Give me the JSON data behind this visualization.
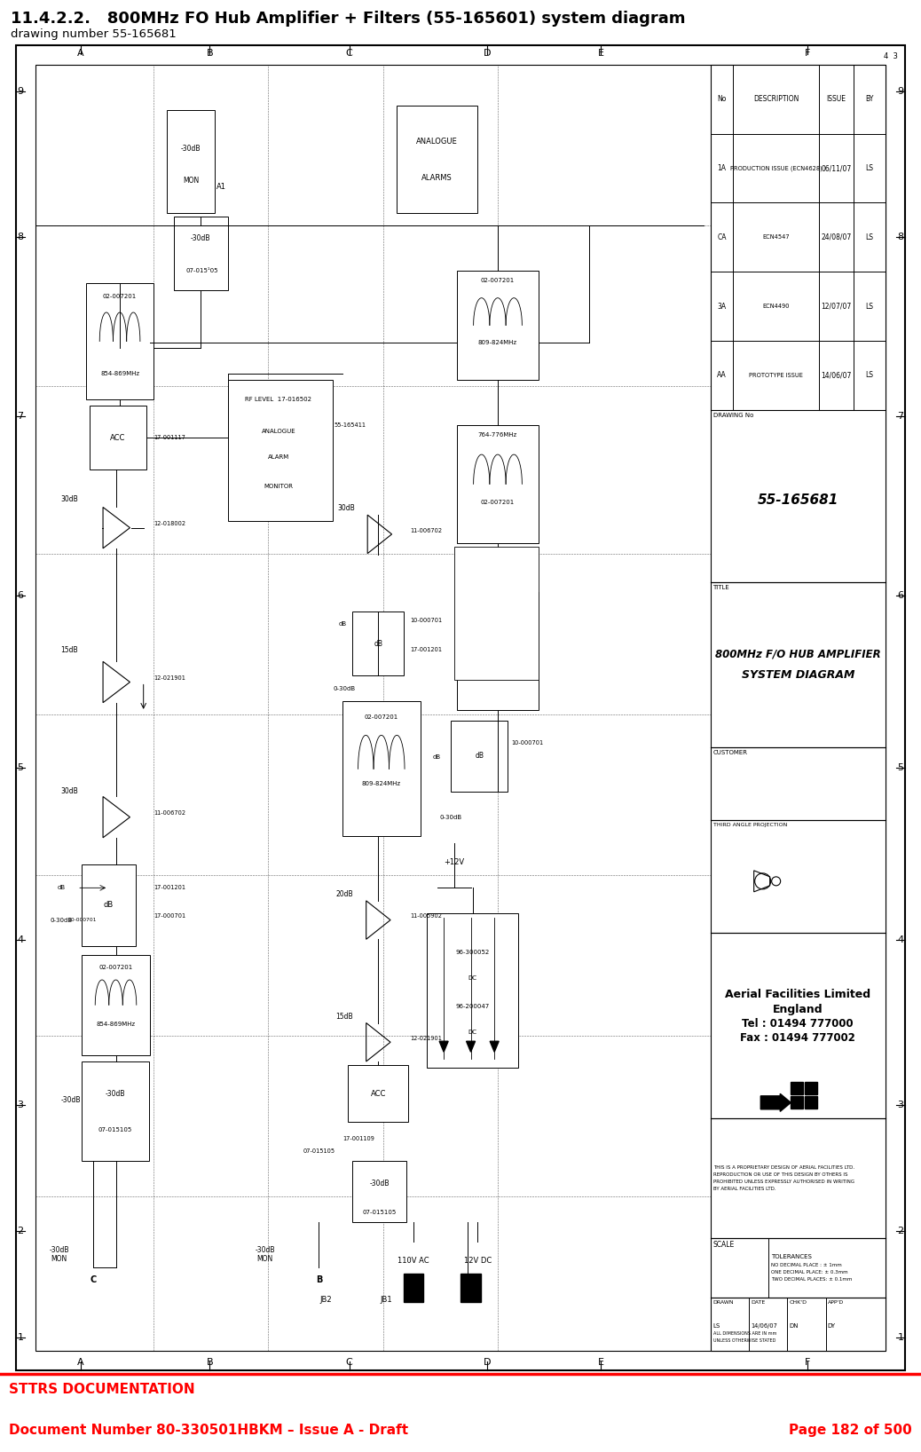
{
  "title_line1": "11.4.2.2.   800MHz FO Hub Amplifier + Filters (55-165601) system diagram",
  "title_line2": "drawing number 55-165681",
  "footer_red_line": "STTRS DOCUMENTATION",
  "footer_doc": "Document Number 80-330501HBKM – Issue A - Draft",
  "footer_page": "Page 182 of 500",
  "bg_color": "#ffffff",
  "title_color": "#000000",
  "footer_text_color": "#ff0000",
  "diagram_title": "800MHz F/O HUB AMPLIFIER",
  "diagram_subtitle": "SYSTEM DIAGRAM",
  "company_name": "Aerial Facilities Limited",
  "company_country": "England",
  "company_tel": "Tel : 01494 777000",
  "company_fax": "Fax : 01494 777002",
  "drawing_no": "55-165681",
  "drawn_date": "14/06/07",
  "revision_table": [
    {
      "rev": "1A",
      "description": "PRODUCTION ISSUE (ECN4628)",
      "date": "06/11/07",
      "by": "LS"
    },
    {
      "rev": "CA",
      "description": "ECN4547",
      "date": "24/08/07",
      "by": "LS"
    },
    {
      "rev": "3A",
      "description": "ECN4490",
      "date": "12/07/07",
      "by": "LS"
    },
    {
      "rev": "AA",
      "description": "PROTOTYPE ISSUE",
      "date": "14/06/07",
      "by": "LS"
    }
  ]
}
